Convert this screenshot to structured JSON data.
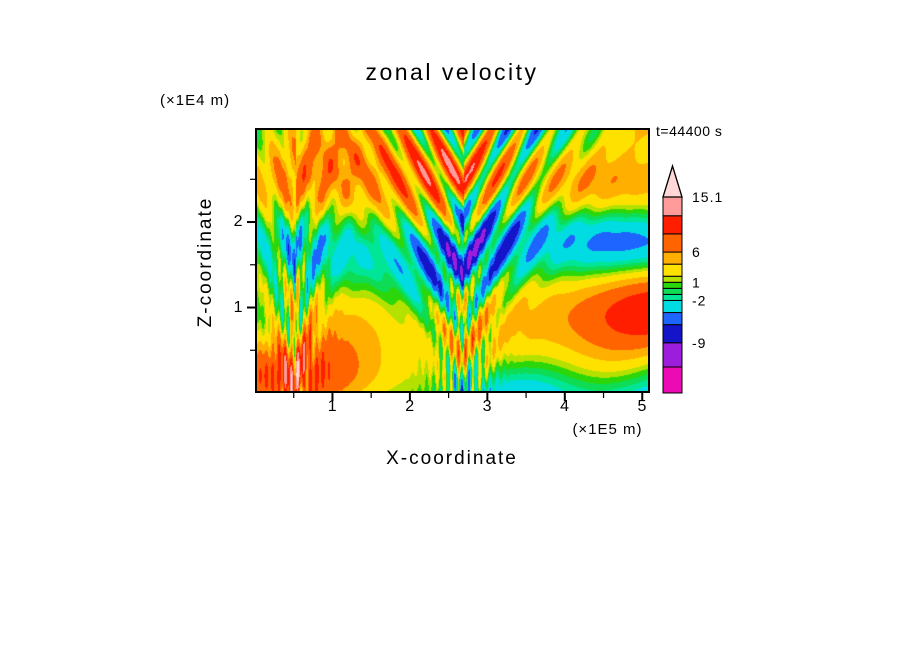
{
  "page": {
    "background": "#FFFFFF"
  },
  "chart_data": {
    "type": "heatmap",
    "title": "zonal velocity",
    "time": "t=44400 s",
    "xlabel": "X-coordinate",
    "x_unit_scale": "(×1E5 m)",
    "xlim": [
      0,
      5.1
    ],
    "x_tick_values": [
      1,
      2,
      3,
      4,
      5
    ],
    "x_tick_labels": [
      "1",
      "2",
      "3",
      "4",
      "5"
    ],
    "ylabel": "Z-coordinate",
    "y_unit_scale": "(×1E4 m)",
    "ylim": [
      0,
      3.1
    ],
    "y_tick_values": [
      1,
      2
    ],
    "y_tick_labels": [
      "1",
      "2"
    ],
    "grid": false,
    "legend": "colorbar-right",
    "colorbar": {
      "orientation": "vertical",
      "position": "right",
      "tick_labels": [
        "15.1",
        "6",
        "1",
        "-2",
        "-9"
      ],
      "tick_values": [
        15.1,
        6,
        1,
        -2,
        -9
      ],
      "vmin": -17.3,
      "vmax": 15.1,
      "levels": [
        -13,
        -9,
        -6,
        -4,
        -2,
        -1,
        0,
        1,
        2,
        4,
        6,
        9,
        12
      ],
      "band_colors": [
        "#EB0AB4",
        "#9C1EDC",
        "#1414C8",
        "#1E64FF",
        "#00DCE1",
        "#00E696",
        "#0FDC55",
        "#2BD70A",
        "#B4E100",
        "#FFE100",
        "#FFAF00",
        "#FF6400",
        "#FF1E00",
        "#FF9B9B"
      ],
      "overflow_color": "#FFD7D7"
    },
    "field_synthesis": {
      "seed": 20,
      "bias": 1.5,
      "n_modes": 12,
      "k_max": 3.2,
      "amp0": 3.1,
      "wave_fans": [
        {
          "u0": 0.53,
          "amp": 5.2,
          "fx": 13,
          "fz": 4.5,
          "w0": 0.03,
          "w1": 0.17,
          "g0": 0.5,
          "g1": 0.9
        },
        {
          "u0": 0.1,
          "amp": 4.2,
          "fx": 16,
          "fz": 3.0,
          "w0": 0.022,
          "w1": 0.1,
          "g0": 1.05,
          "g1": -0.55
        }
      ],
      "filaments": [
        {
          "u0": 0.53,
          "amp": 3.8,
          "f": 55,
          "w": 0.05,
          "vh": 0.5
        },
        {
          "u0": 0.1,
          "amp": 3.5,
          "f": 62,
          "w": 0.045,
          "vh": 0.55
        }
      ]
    }
  }
}
